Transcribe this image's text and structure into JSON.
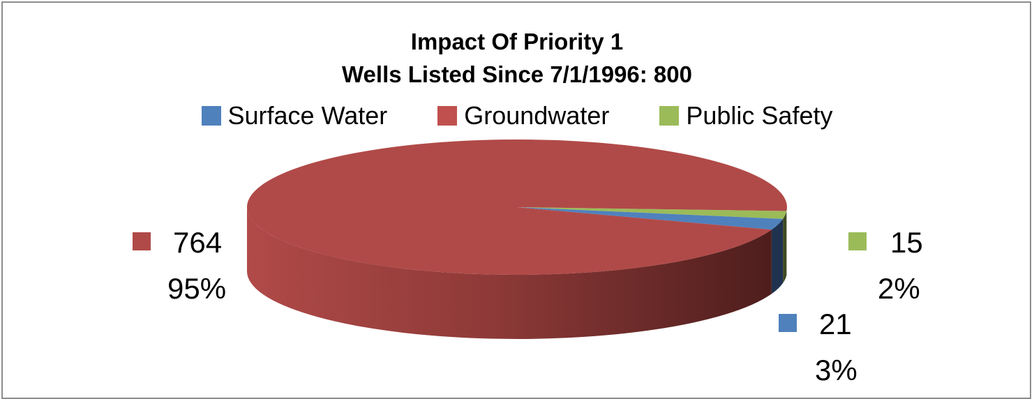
{
  "chart_data": {
    "type": "pie",
    "title_line1": "Impact Of Priority 1",
    "title_line2": "Wells Listed Since 7/1/1996: 800",
    "legend_position": "top",
    "slices": [
      {
        "name": "Surface Water",
        "value": 21,
        "percent": "3%",
        "color": "#4f81bd",
        "side_dark": "#1f3350"
      },
      {
        "name": "Groundwater",
        "value": 764,
        "percent": "95%",
        "color": "#b04a48",
        "side_dark": "#4a1c1b"
      },
      {
        "name": "Public Safety",
        "value": 15,
        "percent": "2%",
        "color": "#9bbb59",
        "side_dark": "#3d4a22"
      }
    ],
    "data_labels": [
      {
        "value": "764",
        "percent": "95%",
        "color": "#b04a48"
      },
      {
        "value": "15",
        "percent": "2%",
        "color": "#9bbb59"
      },
      {
        "value": "21",
        "percent": "3%",
        "color": "#4f81bd"
      }
    ]
  }
}
